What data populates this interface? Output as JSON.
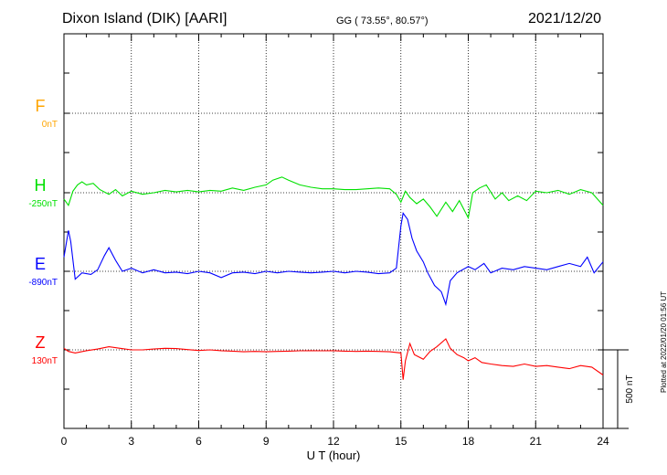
{
  "header": {
    "title": "Dixon Island (DIK)  [AARI]",
    "coords": "GG ( 73.55°,  80.57°)",
    "date": "2021/12/20",
    "plotted": "Plotted at 2022/01/20 01:56 UT"
  },
  "chart_data": {
    "type": "line",
    "xlabel": "U T (hour)",
    "xlim": [
      0,
      24
    ],
    "x_ticks": [
      0,
      3,
      6,
      9,
      12,
      15,
      18,
      21,
      24
    ],
    "scale_bar_label": "500 nT",
    "grid": true,
    "channels": [
      {
        "name": "F",
        "baseline": "0nT",
        "color": "#ffa500",
        "points": []
      },
      {
        "name": "H",
        "baseline": "-250nT",
        "color": "#00e000",
        "points": [
          [
            0,
            -290
          ],
          [
            0.2,
            -330
          ],
          [
            0.4,
            -240
          ],
          [
            0.6,
            -200
          ],
          [
            0.8,
            -180
          ],
          [
            1,
            -200
          ],
          [
            1.3,
            -190
          ],
          [
            1.6,
            -230
          ],
          [
            2,
            -260
          ],
          [
            2.3,
            -230
          ],
          [
            2.6,
            -270
          ],
          [
            3,
            -240
          ],
          [
            3.5,
            -260
          ],
          [
            4,
            -250
          ],
          [
            4.5,
            -235
          ],
          [
            5,
            -245
          ],
          [
            5.5,
            -235
          ],
          [
            6,
            -245
          ],
          [
            6.5,
            -235
          ],
          [
            7,
            -240
          ],
          [
            7.5,
            -220
          ],
          [
            8,
            -235
          ],
          [
            8.5,
            -215
          ],
          [
            9,
            -200
          ],
          [
            9.3,
            -170
          ],
          [
            9.7,
            -150
          ],
          [
            10,
            -170
          ],
          [
            10.5,
            -200
          ],
          [
            11,
            -215
          ],
          [
            11.5,
            -225
          ],
          [
            12,
            -225
          ],
          [
            12.5,
            -230
          ],
          [
            13,
            -230
          ],
          [
            13.5,
            -225
          ],
          [
            14,
            -220
          ],
          [
            14.5,
            -225
          ],
          [
            14.8,
            -260
          ],
          [
            15,
            -310
          ],
          [
            15.2,
            -240
          ],
          [
            15.4,
            -280
          ],
          [
            15.7,
            -320
          ],
          [
            16,
            -290
          ],
          [
            16.3,
            -340
          ],
          [
            16.6,
            -400
          ],
          [
            17,
            -310
          ],
          [
            17.3,
            -370
          ],
          [
            17.6,
            -300
          ],
          [
            18,
            -410
          ],
          [
            18.2,
            -250
          ],
          [
            18.5,
            -220
          ],
          [
            18.8,
            -200
          ],
          [
            19.2,
            -290
          ],
          [
            19.5,
            -250
          ],
          [
            19.8,
            -300
          ],
          [
            20.2,
            -270
          ],
          [
            20.6,
            -300
          ],
          [
            21,
            -240
          ],
          [
            21.5,
            -250
          ],
          [
            22,
            -235
          ],
          [
            22.5,
            -260
          ],
          [
            23,
            -230
          ],
          [
            23.5,
            -250
          ],
          [
            24,
            -330
          ]
        ]
      },
      {
        "name": "E",
        "baseline": "-890nT",
        "color": "#0000ff",
        "points": [
          [
            0,
            -800
          ],
          [
            0.2,
            -630
          ],
          [
            0.3,
            -700
          ],
          [
            0.5,
            -940
          ],
          [
            0.8,
            -900
          ],
          [
            1.2,
            -910
          ],
          [
            1.5,
            -880
          ],
          [
            1.8,
            -790
          ],
          [
            2,
            -740
          ],
          [
            2.3,
            -820
          ],
          [
            2.6,
            -890
          ],
          [
            3,
            -870
          ],
          [
            3.5,
            -900
          ],
          [
            4,
            -880
          ],
          [
            4.5,
            -900
          ],
          [
            5,
            -895
          ],
          [
            5.5,
            -905
          ],
          [
            6,
            -890
          ],
          [
            6.5,
            -900
          ],
          [
            7,
            -930
          ],
          [
            7.5,
            -900
          ],
          [
            8,
            -895
          ],
          [
            8.5,
            -905
          ],
          [
            9,
            -890
          ],
          [
            9.5,
            -900
          ],
          [
            10,
            -890
          ],
          [
            10.5,
            -895
          ],
          [
            11,
            -900
          ],
          [
            11.5,
            -895
          ],
          [
            12,
            -890
          ],
          [
            12.5,
            -900
          ],
          [
            13,
            -890
          ],
          [
            13.5,
            -895
          ],
          [
            14,
            -905
          ],
          [
            14.5,
            -900
          ],
          [
            14.8,
            -870
          ],
          [
            15,
            -600
          ],
          [
            15.1,
            -520
          ],
          [
            15.3,
            -560
          ],
          [
            15.5,
            -680
          ],
          [
            15.7,
            -760
          ],
          [
            16,
            -830
          ],
          [
            16.2,
            -900
          ],
          [
            16.5,
            -980
          ],
          [
            16.8,
            -1020
          ],
          [
            17,
            -1100
          ],
          [
            17.2,
            -950
          ],
          [
            17.5,
            -900
          ],
          [
            18,
            -860
          ],
          [
            18.3,
            -880
          ],
          [
            18.7,
            -840
          ],
          [
            19,
            -900
          ],
          [
            19.5,
            -870
          ],
          [
            20,
            -880
          ],
          [
            20.5,
            -860
          ],
          [
            21,
            -870
          ],
          [
            21.5,
            -880
          ],
          [
            22,
            -860
          ],
          [
            22.5,
            -840
          ],
          [
            23,
            -860
          ],
          [
            23.3,
            -800
          ],
          [
            23.6,
            -900
          ],
          [
            24,
            -830
          ]
        ]
      },
      {
        "name": "Z",
        "baseline": "130nT",
        "color": "#ff0000",
        "points": [
          [
            0,
            140
          ],
          [
            0.2,
            120
          ],
          [
            0.5,
            110
          ],
          [
            1,
            125
          ],
          [
            1.5,
            135
          ],
          [
            2,
            150
          ],
          [
            2.5,
            140
          ],
          [
            3,
            130
          ],
          [
            3.5,
            130
          ],
          [
            4,
            135
          ],
          [
            4.5,
            140
          ],
          [
            5,
            138
          ],
          [
            5.5,
            132
          ],
          [
            6,
            126
          ],
          [
            6.5,
            130
          ],
          [
            7,
            125
          ],
          [
            7.5,
            122
          ],
          [
            8,
            118
          ],
          [
            8.5,
            120
          ],
          [
            9,
            118
          ],
          [
            9.5,
            120
          ],
          [
            10,
            122
          ],
          [
            10.5,
            124
          ],
          [
            11,
            125
          ],
          [
            11.5,
            124
          ],
          [
            12,
            125
          ],
          [
            12.5,
            122
          ],
          [
            13,
            120
          ],
          [
            13.5,
            122
          ],
          [
            14,
            120
          ],
          [
            14.5,
            118
          ],
          [
            15,
            110
          ],
          [
            15.1,
            -60
          ],
          [
            15.2,
            60
          ],
          [
            15.4,
            170
          ],
          [
            15.6,
            100
          ],
          [
            16,
            70
          ],
          [
            16.3,
            120
          ],
          [
            16.6,
            150
          ],
          [
            17,
            200
          ],
          [
            17.2,
            140
          ],
          [
            17.5,
            100
          ],
          [
            17.8,
            80
          ],
          [
            18,
            60
          ],
          [
            18.3,
            80
          ],
          [
            18.6,
            50
          ],
          [
            19,
            40
          ],
          [
            19.5,
            30
          ],
          [
            20,
            25
          ],
          [
            20.5,
            40
          ],
          [
            21,
            25
          ],
          [
            21.5,
            30
          ],
          [
            22,
            20
          ],
          [
            22.5,
            10
          ],
          [
            23,
            30
          ],
          [
            23.5,
            20
          ],
          [
            24,
            -30
          ]
        ]
      }
    ]
  }
}
